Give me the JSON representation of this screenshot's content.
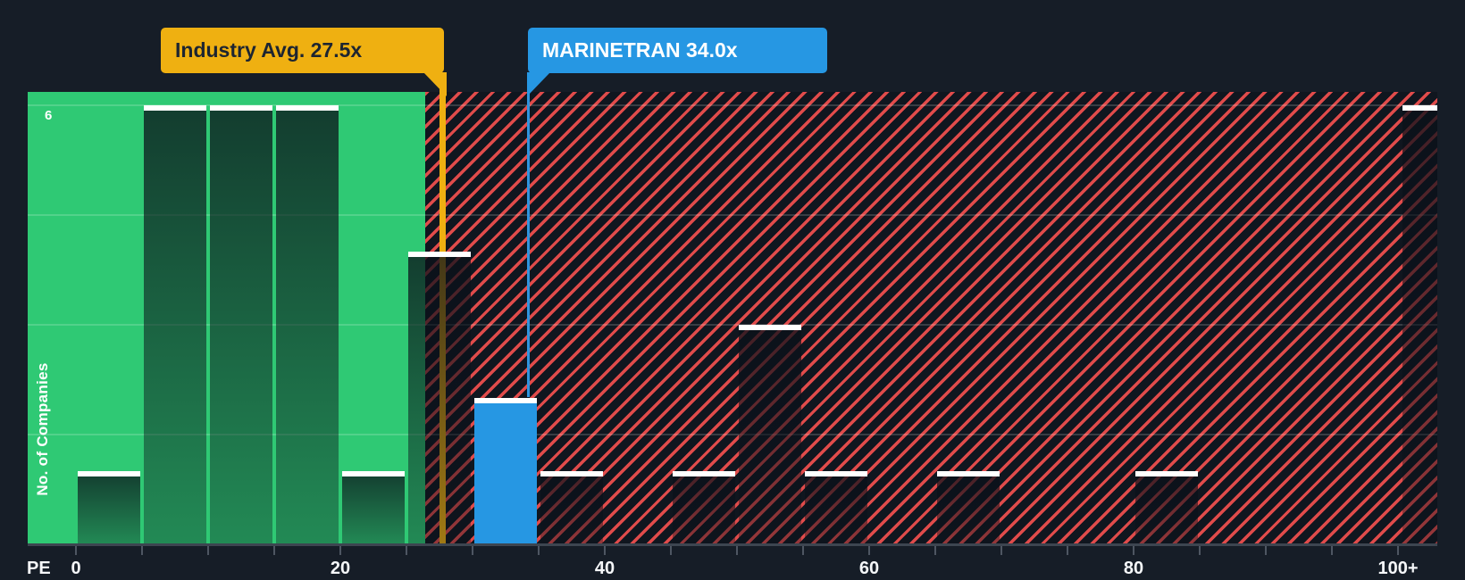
{
  "callouts": {
    "industry": {
      "label": "Industry Avg. 27.5x",
      "value": 27.5
    },
    "company": {
      "label": "MARINETRAN 34.0x",
      "value": 34.0
    }
  },
  "axis": {
    "x_title": "PE",
    "x_tick_labels": [
      "0",
      "20",
      "40",
      "60",
      "80",
      "100+"
    ],
    "y_title": "No. of Companies",
    "y_top_label": "6"
  },
  "chart_data": {
    "type": "bar",
    "subtype": "histogram",
    "title": "Number of companies by PE ratio vs industry average",
    "xlabel": "PE",
    "ylabel": "No. of Companies",
    "bin_width": 5,
    "x_domain": [
      0,
      105
    ],
    "x_tick_values": [
      0,
      20,
      40,
      60,
      80,
      100
    ],
    "y_domain": [
      0,
      6
    ],
    "y_gridline_step": 1.5,
    "grid": "horizontal-faint",
    "bins": [
      {
        "range": "0-5",
        "count": 1
      },
      {
        "range": "5-10",
        "count": 6
      },
      {
        "range": "10-15",
        "count": 6
      },
      {
        "range": "15-20",
        "count": 6
      },
      {
        "range": "20-25",
        "count": 1
      },
      {
        "range": "25-30",
        "count": 4
      },
      {
        "range": "30-35",
        "count": 2,
        "highlight": "company"
      },
      {
        "range": "35-40",
        "count": 1
      },
      {
        "range": "40-45",
        "count": 0
      },
      {
        "range": "45-50",
        "count": 1
      },
      {
        "range": "50-55",
        "count": 3
      },
      {
        "range": "55-60",
        "count": 1
      },
      {
        "range": "60-65",
        "count": 0
      },
      {
        "range": "65-70",
        "count": 1
      },
      {
        "range": "70-75",
        "count": 0
      },
      {
        "range": "75-80",
        "count": 0
      },
      {
        "range": "80-85",
        "count": 1
      },
      {
        "range": "85-90",
        "count": 0
      },
      {
        "range": "90-95",
        "count": 0
      },
      {
        "range": "95-100",
        "count": 0
      },
      {
        "range": "100+",
        "count": 6
      }
    ],
    "annotations": [
      {
        "type": "vline",
        "label": "Industry Avg. 27.5x",
        "x": 27.5,
        "color": "#efb011"
      },
      {
        "type": "vline",
        "label": "MARINETRAN 34.0x",
        "x": 34.0,
        "color": "#2697e3"
      }
    ],
    "regions": [
      {
        "name": "below industry average",
        "from": 0,
        "to": 27.5,
        "style": "solid-green"
      },
      {
        "name": "above industry average",
        "from": 27.5,
        "to": 105,
        "style": "red-hatch"
      }
    ]
  },
  "colors": {
    "background": "#161d27",
    "green_region": "#2fc974",
    "hatch_red": "#eb4e4d",
    "hatch_background": "#10161f",
    "industry_accent": "#efb011",
    "company_accent": "#2697e3",
    "bar_cap": "#ffffff",
    "axis_line": "#3d4550",
    "label_text": "#f5f7f9"
  }
}
